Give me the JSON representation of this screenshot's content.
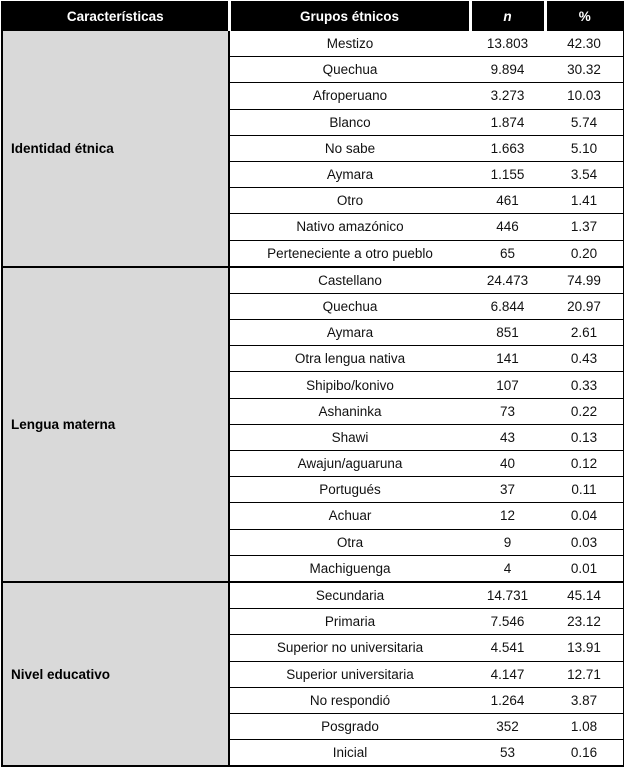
{
  "table": {
    "headers": {
      "characteristics": "Características",
      "group": "Grupos étnicos",
      "n": "n",
      "percent": "%"
    },
    "sections": [
      {
        "label": "Identidad étnica",
        "rows": [
          [
            "Mestizo",
            "13.803",
            "42.30"
          ],
          [
            "Quechua",
            "9.894",
            "30.32"
          ],
          [
            "Afroperuano",
            "3.273",
            "10.03"
          ],
          [
            "Blanco",
            "1.874",
            "5.74"
          ],
          [
            "No sabe",
            "1.663",
            "5.10"
          ],
          [
            "Aymara",
            "1.155",
            "3.54"
          ],
          [
            "Otro",
            "461",
            "1.41"
          ],
          [
            "Nativo amazónico",
            "446",
            "1.37"
          ],
          [
            "Perteneciente a otro pueblo",
            "65",
            "0.20"
          ]
        ]
      },
      {
        "label": "Lengua materna",
        "rows": [
          [
            "Castellano",
            "24.473",
            "74.99"
          ],
          [
            "Quechua",
            "6.844",
            "20.97"
          ],
          [
            "Aymara",
            "851",
            "2.61"
          ],
          [
            "Otra lengua nativa",
            "141",
            "0.43"
          ],
          [
            "Shipibo/konivo",
            "107",
            "0.33"
          ],
          [
            "Ashaninka",
            "73",
            "0.22"
          ],
          [
            "Shawi",
            "43",
            "0.13"
          ],
          [
            "Awajun/aguaruna",
            "40",
            "0.12"
          ],
          [
            "Portugués",
            "37",
            "0.11"
          ],
          [
            "Achuar",
            "12",
            "0.04"
          ],
          [
            "Otra",
            "9",
            "0.03"
          ],
          [
            "Machiguenga",
            "4",
            "0.01"
          ]
        ]
      },
      {
        "label": "Nivel educativo",
        "rows": [
          [
            "Secundaria",
            "14.731",
            "45.14"
          ],
          [
            "Primaria",
            "7.546",
            "23.12"
          ],
          [
            "Superior no universitaria",
            "4.541",
            "13.91"
          ],
          [
            "Superior universitaria",
            "4.147",
            "12.71"
          ],
          [
            "No respondió",
            "1.264",
            "3.87"
          ],
          [
            "Posgrado",
            "352",
            "1.08"
          ],
          [
            "Inicial",
            "53",
            "0.16"
          ]
        ]
      }
    ]
  },
  "colors": {
    "header_bg": "#000000",
    "header_text": "#ffffff",
    "category_bg": "#d9d9d9",
    "border": "#000000",
    "text": "#111111"
  }
}
